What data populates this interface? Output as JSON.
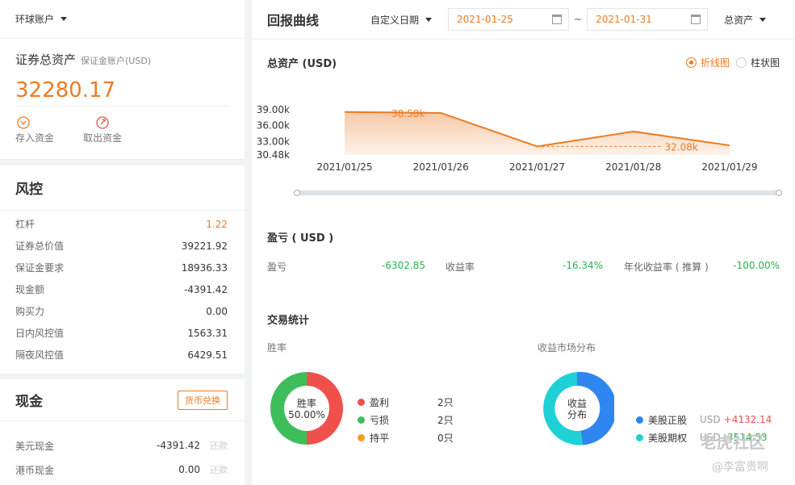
{
  "account": {
    "selector_label": "环球账户"
  },
  "assets": {
    "title": "证券总资产",
    "subtitle": "保证金账户(USD)",
    "value": "32280.17",
    "deposit_label": "存入资金",
    "withdraw_label": "取出资金"
  },
  "risk": {
    "title": "风控",
    "rows": [
      {
        "label": "杠杆",
        "value": "1.22"
      },
      {
        "label": "证券总价值",
        "value": "39221.92"
      },
      {
        "label": "保证金要求",
        "value": "18936.33"
      },
      {
        "label": "现金额",
        "value": "-4391.42"
      },
      {
        "label": "购买力",
        "value": "0.00"
      },
      {
        "label": "日内风控值",
        "value": "1563.31"
      },
      {
        "label": "隔夜风控值",
        "value": "6429.51"
      }
    ]
  },
  "cash": {
    "title": "现金",
    "exchange_label": "货币兑换",
    "rows": [
      {
        "label": "美元现金",
        "value": "-4391.42",
        "action": "还款"
      },
      {
        "label": "港币现金",
        "value": "0.00",
        "action": "还款"
      }
    ]
  },
  "header": {
    "title": "回报曲线",
    "range_select": "自定义日期",
    "start_date": "2021-01-25",
    "separator": "~",
    "end_date": "2021-01-31",
    "metric_select": "总资产"
  },
  "chart_header": {
    "title": "总资产 (USD)",
    "line_option": "折线图",
    "bar_option": "柱状图"
  },
  "chart_data": {
    "type": "line",
    "categories": [
      "2021/01/25",
      "2021/01/26",
      "2021/01/27",
      "2021/01/28",
      "2021/01/29"
    ],
    "values": [
      38580,
      38400,
      32080,
      34900,
      32280
    ],
    "yticks": [
      "39.00k",
      "36.00k",
      "33.00k",
      "30.48k"
    ],
    "ytick_values": [
      39000,
      36000,
      33000,
      30480
    ],
    "ylim": [
      30480,
      39000
    ],
    "max_label": "38.58k",
    "min_label": "32.08k",
    "color": "#ee7a22"
  },
  "pnl": {
    "title": "盈亏 ( USD )",
    "items": [
      {
        "label": "盈亏",
        "value": "-6302.85"
      },
      {
        "label": "收益率",
        "value": "-16.34%"
      },
      {
        "label": "年化收益率 ( 推算 )",
        "value": "-100.00%"
      }
    ]
  },
  "trade_stats": {
    "title": "交易统计",
    "win_rate": {
      "title": "胜率",
      "center_label": "胜率",
      "center_value": "50.00%",
      "legend": [
        {
          "label": "盈利",
          "value": "2只",
          "color": "#f0504c"
        },
        {
          "label": "亏损",
          "value": "2只",
          "color": "#3dbe5b"
        },
        {
          "label": "持平",
          "value": "0只",
          "color": "#f59a2b"
        }
      ],
      "slices": [
        50,
        50
      ]
    },
    "market": {
      "title": "收益市场分布",
      "center_label_1": "收益",
      "center_label_2": "分布",
      "legend": [
        {
          "label": "美股正股",
          "currency": "USD",
          "value": "+4132.14",
          "color": "#2f86f0"
        },
        {
          "label": "美股期权",
          "currency": "USD",
          "value": "-3514.53",
          "color": "#1fd0d6"
        }
      ]
    }
  },
  "watermark": {
    "brand": "老虎社区",
    "user": "@李富贵啊"
  }
}
